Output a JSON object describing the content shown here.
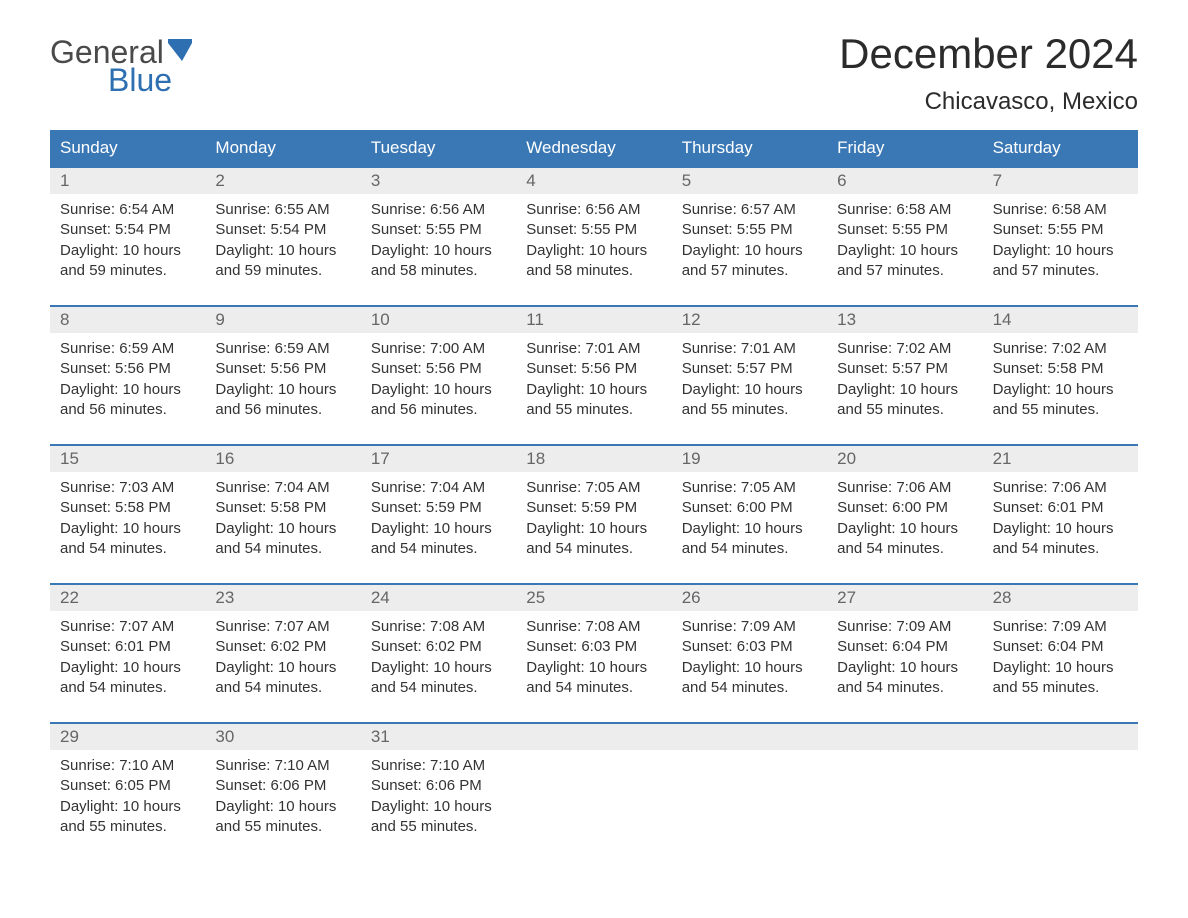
{
  "brand": {
    "line1": "General",
    "line2": "Blue",
    "text_color": "#4a4a4a",
    "accent_color": "#2d6fb0"
  },
  "title": "December 2024",
  "location": "Chicavasco, Mexico",
  "colors": {
    "header_bg": "#3a78b5",
    "header_text": "#ffffff",
    "daynum_bg": "#ededed",
    "daynum_text": "#666666",
    "body_text": "#333333",
    "week_border": "#3a78b5",
    "page_bg": "#ffffff"
  },
  "typography": {
    "title_fontsize": 42,
    "location_fontsize": 24,
    "header_fontsize": 17,
    "daynum_fontsize": 17,
    "cell_fontsize": 15
  },
  "layout": {
    "columns": 7,
    "weeks": 5
  },
  "weekdays": [
    "Sunday",
    "Monday",
    "Tuesday",
    "Wednesday",
    "Thursday",
    "Friday",
    "Saturday"
  ],
  "labels": {
    "sunrise": "Sunrise",
    "sunset": "Sunset",
    "daylight": "Daylight"
  },
  "days": [
    {
      "num": 1,
      "sunrise": "6:54 AM",
      "sunset": "5:54 PM",
      "daylight": "10 hours and 59 minutes."
    },
    {
      "num": 2,
      "sunrise": "6:55 AM",
      "sunset": "5:54 PM",
      "daylight": "10 hours and 59 minutes."
    },
    {
      "num": 3,
      "sunrise": "6:56 AM",
      "sunset": "5:55 PM",
      "daylight": "10 hours and 58 minutes."
    },
    {
      "num": 4,
      "sunrise": "6:56 AM",
      "sunset": "5:55 PM",
      "daylight": "10 hours and 58 minutes."
    },
    {
      "num": 5,
      "sunrise": "6:57 AM",
      "sunset": "5:55 PM",
      "daylight": "10 hours and 57 minutes."
    },
    {
      "num": 6,
      "sunrise": "6:58 AM",
      "sunset": "5:55 PM",
      "daylight": "10 hours and 57 minutes."
    },
    {
      "num": 7,
      "sunrise": "6:58 AM",
      "sunset": "5:55 PM",
      "daylight": "10 hours and 57 minutes."
    },
    {
      "num": 8,
      "sunrise": "6:59 AM",
      "sunset": "5:56 PM",
      "daylight": "10 hours and 56 minutes."
    },
    {
      "num": 9,
      "sunrise": "6:59 AM",
      "sunset": "5:56 PM",
      "daylight": "10 hours and 56 minutes."
    },
    {
      "num": 10,
      "sunrise": "7:00 AM",
      "sunset": "5:56 PM",
      "daylight": "10 hours and 56 minutes."
    },
    {
      "num": 11,
      "sunrise": "7:01 AM",
      "sunset": "5:56 PM",
      "daylight": "10 hours and 55 minutes."
    },
    {
      "num": 12,
      "sunrise": "7:01 AM",
      "sunset": "5:57 PM",
      "daylight": "10 hours and 55 minutes."
    },
    {
      "num": 13,
      "sunrise": "7:02 AM",
      "sunset": "5:57 PM",
      "daylight": "10 hours and 55 minutes."
    },
    {
      "num": 14,
      "sunrise": "7:02 AM",
      "sunset": "5:58 PM",
      "daylight": "10 hours and 55 minutes."
    },
    {
      "num": 15,
      "sunrise": "7:03 AM",
      "sunset": "5:58 PM",
      "daylight": "10 hours and 54 minutes."
    },
    {
      "num": 16,
      "sunrise": "7:04 AM",
      "sunset": "5:58 PM",
      "daylight": "10 hours and 54 minutes."
    },
    {
      "num": 17,
      "sunrise": "7:04 AM",
      "sunset": "5:59 PM",
      "daylight": "10 hours and 54 minutes."
    },
    {
      "num": 18,
      "sunrise": "7:05 AM",
      "sunset": "5:59 PM",
      "daylight": "10 hours and 54 minutes."
    },
    {
      "num": 19,
      "sunrise": "7:05 AM",
      "sunset": "6:00 PM",
      "daylight": "10 hours and 54 minutes."
    },
    {
      "num": 20,
      "sunrise": "7:06 AM",
      "sunset": "6:00 PM",
      "daylight": "10 hours and 54 minutes."
    },
    {
      "num": 21,
      "sunrise": "7:06 AM",
      "sunset": "6:01 PM",
      "daylight": "10 hours and 54 minutes."
    },
    {
      "num": 22,
      "sunrise": "7:07 AM",
      "sunset": "6:01 PM",
      "daylight": "10 hours and 54 minutes."
    },
    {
      "num": 23,
      "sunrise": "7:07 AM",
      "sunset": "6:02 PM",
      "daylight": "10 hours and 54 minutes."
    },
    {
      "num": 24,
      "sunrise": "7:08 AM",
      "sunset": "6:02 PM",
      "daylight": "10 hours and 54 minutes."
    },
    {
      "num": 25,
      "sunrise": "7:08 AM",
      "sunset": "6:03 PM",
      "daylight": "10 hours and 54 minutes."
    },
    {
      "num": 26,
      "sunrise": "7:09 AM",
      "sunset": "6:03 PM",
      "daylight": "10 hours and 54 minutes."
    },
    {
      "num": 27,
      "sunrise": "7:09 AM",
      "sunset": "6:04 PM",
      "daylight": "10 hours and 54 minutes."
    },
    {
      "num": 28,
      "sunrise": "7:09 AM",
      "sunset": "6:04 PM",
      "daylight": "10 hours and 55 minutes."
    },
    {
      "num": 29,
      "sunrise": "7:10 AM",
      "sunset": "6:05 PM",
      "daylight": "10 hours and 55 minutes."
    },
    {
      "num": 30,
      "sunrise": "7:10 AM",
      "sunset": "6:06 PM",
      "daylight": "10 hours and 55 minutes."
    },
    {
      "num": 31,
      "sunrise": "7:10 AM",
      "sunset": "6:06 PM",
      "daylight": "10 hours and 55 minutes."
    }
  ]
}
